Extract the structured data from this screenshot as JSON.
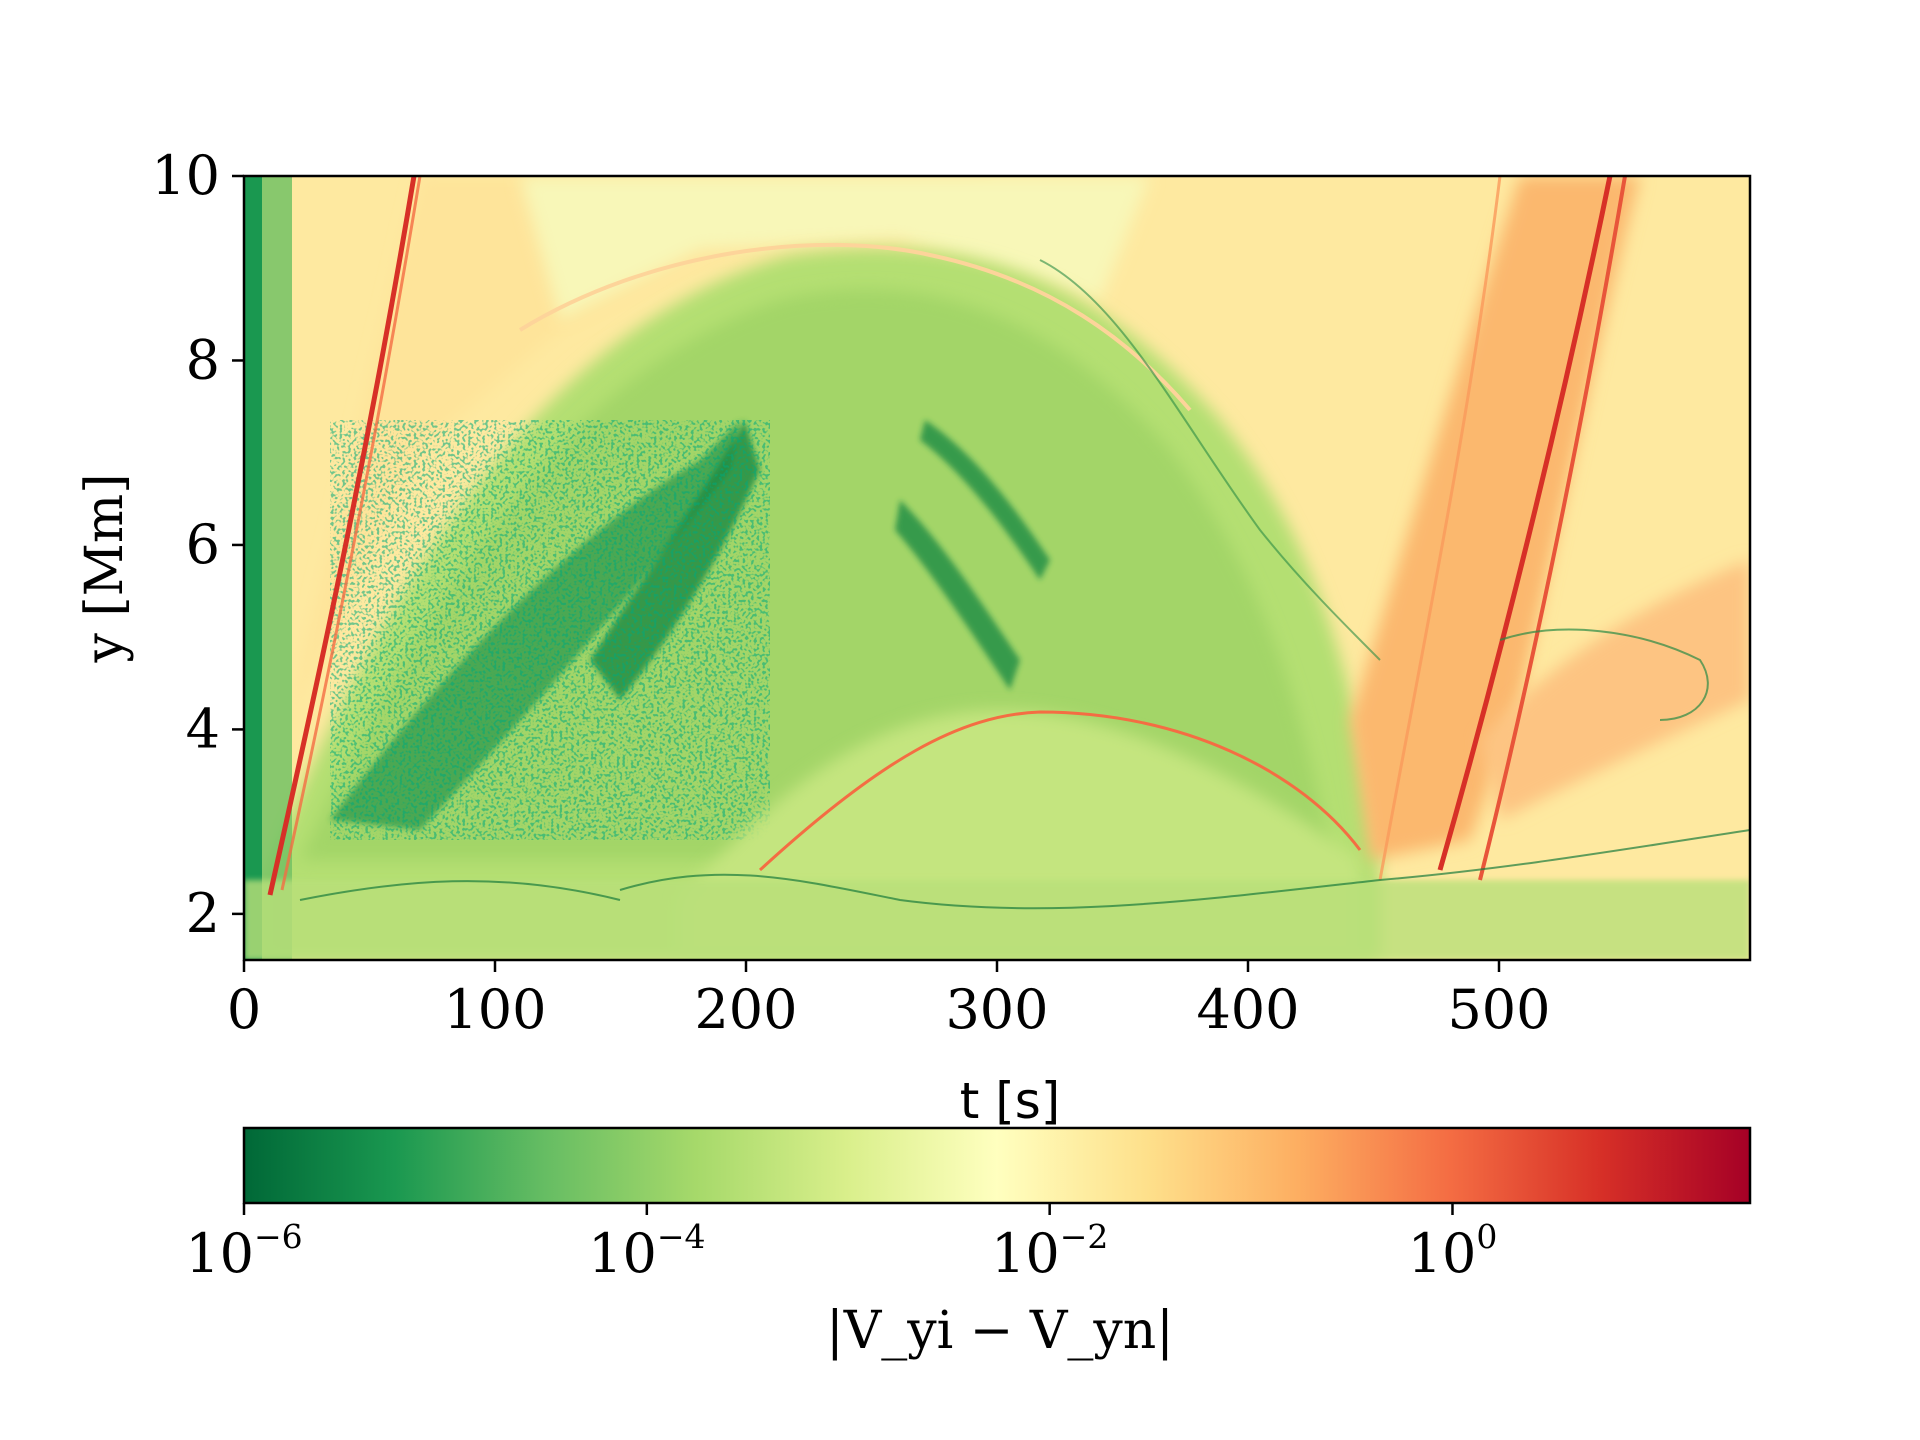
{
  "chart_data": {
    "type": "heatmap",
    "title": "",
    "xlabel": "t [s]",
    "ylabel": "y [Mm]",
    "xlim": [
      0,
      600
    ],
    "ylim": [
      1.5,
      10
    ],
    "x_ticks": [
      "0",
      "100",
      "200",
      "300",
      "400",
      "500"
    ],
    "x_tick_values": [
      0,
      100,
      200,
      300,
      400,
      500
    ],
    "y_ticks": [
      "2",
      "4",
      "6",
      "8",
      "10"
    ],
    "y_tick_values": [
      2,
      4,
      6,
      8,
      10
    ],
    "colorbar": {
      "label": "|V_yi − V_yn|",
      "scale": "log",
      "range": [
        1e-06,
        30
      ],
      "ticks": [
        {
          "base": "10",
          "exp": "−6",
          "value": 1e-06
        },
        {
          "base": "10",
          "exp": "−4",
          "value": 0.0001
        },
        {
          "base": "10",
          "exp": "−2",
          "value": 0.01
        },
        {
          "base": "10",
          "exp": "0",
          "value": 1
        }
      ],
      "colormap": "RdYlGn_r",
      "colors": [
        "#006837",
        "#1a9850",
        "#66bd63",
        "#a6d96a",
        "#d9ef8b",
        "#ffffbf",
        "#fee08b",
        "#fdae61",
        "#f46d43",
        "#d73027",
        "#a50026"
      ]
    },
    "grid": false
  }
}
